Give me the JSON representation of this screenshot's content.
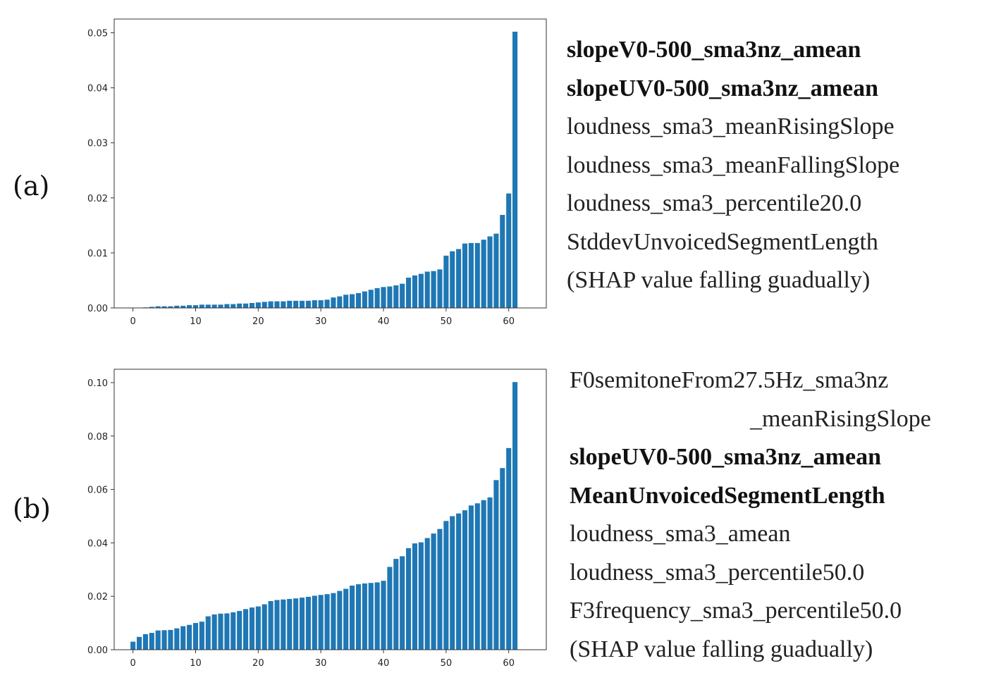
{
  "panels": [
    {
      "label": "(a)",
      "features": [
        {
          "text": "slopeV0-500_sma3nz_amean",
          "bold": true
        },
        {
          "text": "slopeUV0-500_sma3nz_amean",
          "bold": true
        },
        {
          "text": "loudness_sma3_meanRisingSlope",
          "bold": false
        },
        {
          "text": "loudness_sma3_meanFallingSlope",
          "bold": false
        },
        {
          "text": "loudness_sma3_percentile20.0",
          "bold": false
        },
        {
          "text": "StddevUnvoicedSegmentLength",
          "bold": false
        },
        {
          "text": "(SHAP value falling guadually)",
          "bold": false
        }
      ]
    },
    {
      "label": "(b)",
      "features": [
        {
          "text": "F0semitoneFrom27.5Hz_sma3nz",
          "bold": false
        },
        {
          "text": "_meanRisingSlope",
          "bold": false,
          "indent": true
        },
        {
          "text": "slopeUV0-500_sma3nz_amean",
          "bold": true
        },
        {
          "text": "MeanUnvoicedSegmentLength",
          "bold": true
        },
        {
          "text": "loudness_sma3_amean",
          "bold": false
        },
        {
          "text": "loudness_sma3_percentile50.0",
          "bold": false
        },
        {
          "text": "F3frequency_sma3_percentile50.0",
          "bold": false
        },
        {
          "text": "(SHAP value falling guadually)",
          "bold": false
        }
      ]
    }
  ],
  "chart_data": [
    {
      "type": "bar",
      "panel": "(a)",
      "title": "",
      "xlabel": "",
      "ylabel": "",
      "bar_color": "#1f77b4",
      "grid": false,
      "x_ticks": [
        "0",
        "10",
        "20",
        "30",
        "40",
        "50",
        "60"
      ],
      "y_ticks": [
        "0.00",
        "0.01",
        "0.02",
        "0.03",
        "0.04",
        "0.05"
      ],
      "xlim": [
        -3,
        66
      ],
      "ylim": [
        0,
        0.0525
      ],
      "x": [
        0,
        1,
        2,
        3,
        4,
        5,
        6,
        7,
        8,
        9,
        10,
        11,
        12,
        13,
        14,
        15,
        16,
        17,
        18,
        19,
        20,
        21,
        22,
        23,
        24,
        25,
        26,
        27,
        28,
        29,
        30,
        31,
        32,
        33,
        34,
        35,
        36,
        37,
        38,
        39,
        40,
        41,
        42,
        43,
        44,
        45,
        46,
        47,
        48,
        49,
        50,
        51,
        52,
        53,
        54,
        55,
        56,
        57,
        58,
        59,
        60,
        61
      ],
      "values": [
        0.0,
        0.0,
        0.0001,
        0.0002,
        0.0003,
        0.0003,
        0.0003,
        0.0004,
        0.0004,
        0.0005,
        0.0005,
        0.0006,
        0.0006,
        0.0006,
        0.0006,
        0.0007,
        0.0007,
        0.0008,
        0.0008,
        0.0009,
        0.001,
        0.0011,
        0.0012,
        0.0012,
        0.0012,
        0.0013,
        0.0013,
        0.0013,
        0.0013,
        0.0014,
        0.0014,
        0.0015,
        0.0019,
        0.0021,
        0.0024,
        0.0025,
        0.0027,
        0.003,
        0.0033,
        0.0036,
        0.0038,
        0.0039,
        0.0041,
        0.0044,
        0.0055,
        0.0059,
        0.0062,
        0.0066,
        0.0067,
        0.007,
        0.0095,
        0.0103,
        0.0107,
        0.0117,
        0.0118,
        0.0118,
        0.0124,
        0.013,
        0.0135,
        0.0169,
        0.0208,
        0.0502
      ]
    },
    {
      "type": "bar",
      "panel": "(b)",
      "title": "",
      "xlabel": "",
      "ylabel": "",
      "bar_color": "#1f77b4",
      "grid": false,
      "x_ticks": [
        "0",
        "10",
        "20",
        "30",
        "40",
        "50",
        "60"
      ],
      "y_ticks": [
        "0.00",
        "0.02",
        "0.04",
        "0.06",
        "0.08",
        "0.10"
      ],
      "xlim": [
        -3,
        66
      ],
      "ylim": [
        0,
        0.105
      ],
      "x": [
        0,
        1,
        2,
        3,
        4,
        5,
        6,
        7,
        8,
        9,
        10,
        11,
        12,
        13,
        14,
        15,
        16,
        17,
        18,
        19,
        20,
        21,
        22,
        23,
        24,
        25,
        26,
        27,
        28,
        29,
        30,
        31,
        32,
        33,
        34,
        35,
        36,
        37,
        38,
        39,
        40,
        41,
        42,
        43,
        44,
        45,
        46,
        47,
        48,
        49,
        50,
        51,
        52,
        53,
        54,
        55,
        56,
        57,
        58,
        59,
        60,
        61
      ],
      "values": [
        0.003,
        0.0048,
        0.0058,
        0.0063,
        0.0072,
        0.0073,
        0.0074,
        0.008,
        0.0088,
        0.0093,
        0.01,
        0.0105,
        0.0125,
        0.0132,
        0.0135,
        0.0136,
        0.014,
        0.0145,
        0.0152,
        0.0158,
        0.0162,
        0.017,
        0.0182,
        0.0186,
        0.0188,
        0.019,
        0.0192,
        0.0195,
        0.0198,
        0.0202,
        0.0205,
        0.0208,
        0.0212,
        0.022,
        0.0228,
        0.024,
        0.0245,
        0.0248,
        0.025,
        0.0252,
        0.0258,
        0.031,
        0.034,
        0.035,
        0.038,
        0.0398,
        0.0402,
        0.0418,
        0.0435,
        0.0452,
        0.0482,
        0.05,
        0.051,
        0.0522,
        0.054,
        0.0548,
        0.056,
        0.057,
        0.0635,
        0.068,
        0.0755,
        0.1002
      ]
    }
  ]
}
